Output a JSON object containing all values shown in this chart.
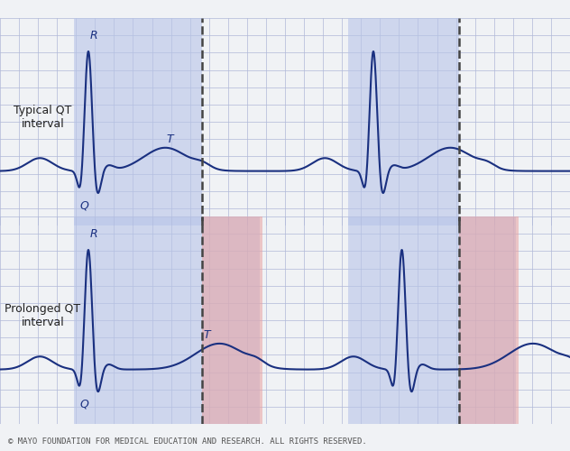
{
  "background_color": "#f0f2f5",
  "panel_bg": "#eef0f8",
  "grid_color": "#b0b8d8",
  "grid_linewidth": 0.5,
  "blue_shade": "#b8c4e8",
  "blue_shade_alpha": 0.6,
  "red_shade": "#e8a0a0",
  "red_shade_alpha": 0.55,
  "ecg_color": "#1a3080",
  "ecg_linewidth": 1.5,
  "dashed_color": "#444444",
  "dashed_lw": 1.8,
  "label1": "Typical QT\ninterval",
  "label2": "Prolonged QT\ninterval",
  "label_fontsize": 9,
  "copyright": "© MAYO FOUNDATION FOR MEDICAL EDUCATION AND RESEARCH. ALL RIGHTS RESERVED.",
  "copyright_fontsize": 6.5,
  "note_color": "#555555",
  "R_label": "R",
  "Q_label": "Q",
  "T_label": "T",
  "annot_fontsize": 9,
  "annot_style": "italic",
  "fig_width": 6.32,
  "fig_height": 5.0,
  "dpi": 100
}
